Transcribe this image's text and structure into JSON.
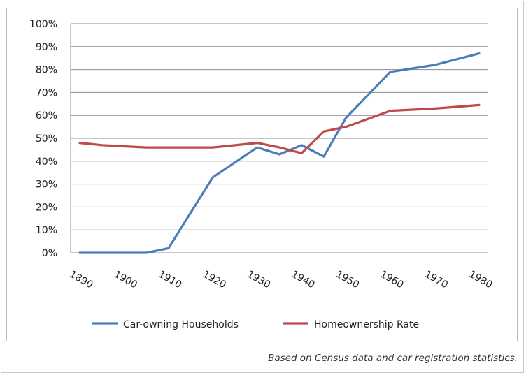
{
  "chart_data": {
    "type": "line",
    "title": "",
    "xlabel": "",
    "ylabel": "",
    "ylim": [
      0,
      100
    ],
    "y_ticks": [
      "0%",
      "10%",
      "20%",
      "30%",
      "40%",
      "50%",
      "60%",
      "70%",
      "80%",
      "90%",
      "100%"
    ],
    "x_tick_labels": [
      "1890",
      "1900",
      "1910",
      "1920",
      "1930",
      "1940",
      "1950",
      "1960",
      "1970",
      "1980"
    ],
    "x": [
      1890,
      1895,
      1900,
      1905,
      1910,
      1915,
      1920,
      1925,
      1930,
      1935,
      1940,
      1945,
      1950,
      1955,
      1960,
      1965,
      1970,
      1975,
      1980
    ],
    "series": [
      {
        "name": "Car-owning Households",
        "color": "#4a7ebb",
        "values": [
          0,
          0,
          0,
          0,
          2,
          null,
          33,
          null,
          46,
          43,
          47,
          42,
          59,
          69,
          79,
          null,
          82,
          null,
          87
        ]
      },
      {
        "name": "Homeownership Rate",
        "color": "#be4b48",
        "values": [
          48,
          47,
          46.5,
          46,
          46,
          null,
          46,
          null,
          48,
          46,
          43.5,
          53,
          55,
          58.5,
          62,
          null,
          63,
          null,
          64.5
        ]
      }
    ],
    "grid": true,
    "legend": "bottom"
  },
  "caption": "Based on Census data and car registration statistics."
}
